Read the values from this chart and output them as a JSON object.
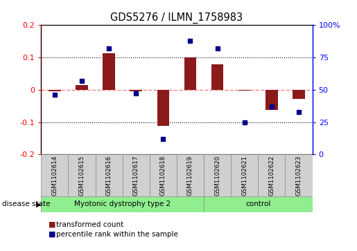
{
  "title": "GDS5276 / ILMN_1758983",
  "samples": [
    "GSM1102614",
    "GSM1102615",
    "GSM1102616",
    "GSM1102617",
    "GSM1102618",
    "GSM1102619",
    "GSM1102620",
    "GSM1102621",
    "GSM1102622",
    "GSM1102623"
  ],
  "transformed_count": [
    -0.005,
    0.015,
    0.112,
    -0.005,
    -0.112,
    0.1,
    0.078,
    -0.003,
    -0.063,
    -0.028
  ],
  "percentile_rank": [
    46,
    57,
    82,
    47,
    12,
    88,
    82,
    25,
    37,
    33
  ],
  "groups": [
    {
      "label": "Myotonic dystrophy type 2",
      "start": 0,
      "end": 6,
      "color": "#90EE90"
    },
    {
      "label": "control",
      "start": 6,
      "end": 10,
      "color": "#90EE90"
    }
  ],
  "bar_color": "#8B1A1A",
  "dot_color": "#00008B",
  "zero_line_color": "#FF8080",
  "ylim_left": [
    -0.2,
    0.2
  ],
  "ylim_right": [
    0,
    100
  ],
  "yticks_left": [
    -0.2,
    -0.1,
    0.0,
    0.1,
    0.2
  ],
  "ytick_labels_left": [
    "-0.2",
    "-0.1",
    "0",
    "0.1",
    "0.2"
  ],
  "yticks_right": [
    0,
    25,
    50,
    75,
    100
  ],
  "ytick_labels_right": [
    "0",
    "25",
    "50",
    "75",
    "100%"
  ],
  "disease_state_label": "disease state",
  "legend_items": [
    {
      "label": "transformed count",
      "color": "#8B1A1A"
    },
    {
      "label": "percentile rank within the sample",
      "color": "#00008B"
    }
  ],
  "background_color": "#ffffff",
  "label_area_color": "#d0d0d0",
  "group_box_color": "#90EE90"
}
